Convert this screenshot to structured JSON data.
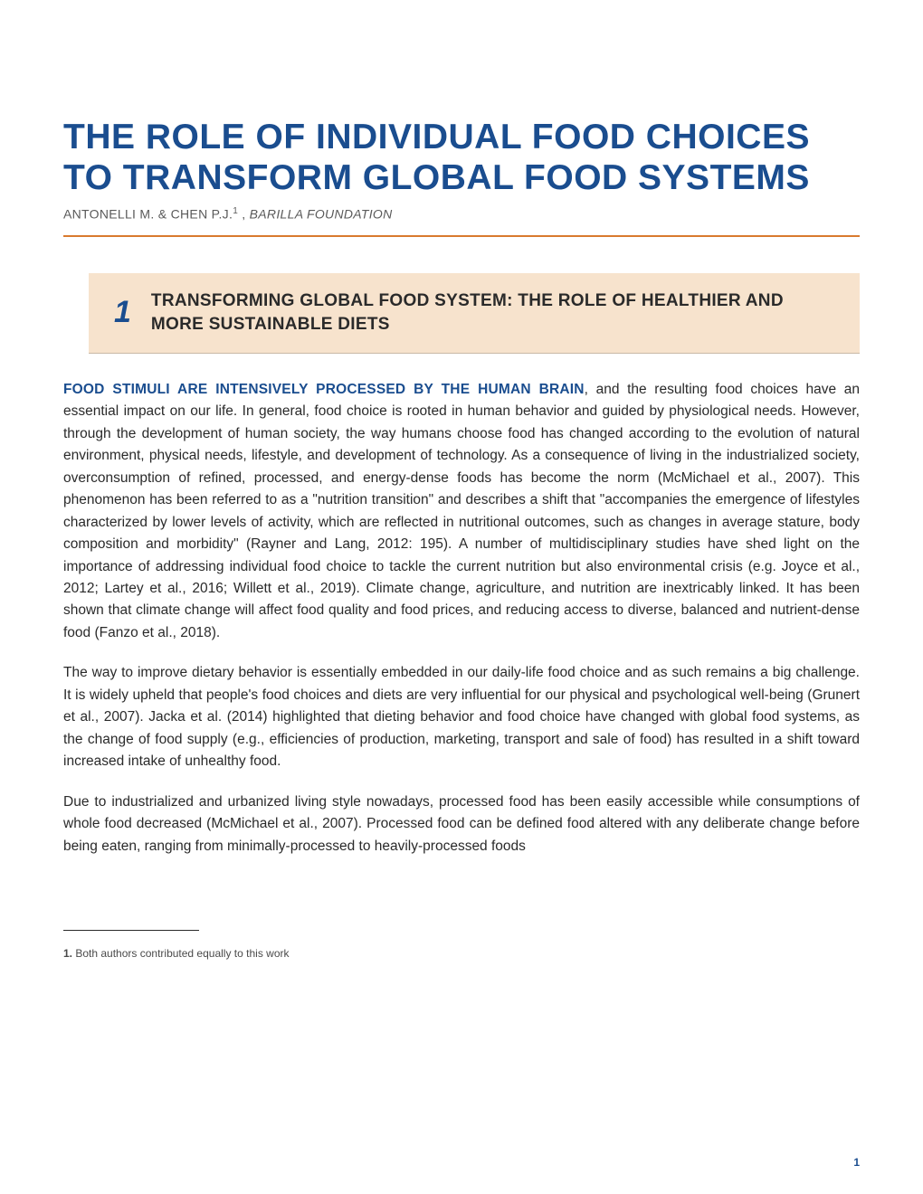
{
  "colors": {
    "title_blue": "#1a4d8f",
    "orange_rule": "#d97a2e",
    "section_bg": "#f7e3cd",
    "section_border": "#c9b9a6",
    "body_text": "#2a2a2a",
    "author_gray": "#5a5a5a",
    "background": "#ffffff"
  },
  "typography": {
    "title_fontsize": 39,
    "section_title_fontsize": 19,
    "section_num_fontsize": 34,
    "body_fontsize": 15.5,
    "author_fontsize": 14,
    "footnote_fontsize": 12
  },
  "title": "THE ROLE OF INDIVIDUAL FOOD CHOICES TO TRANSFORM GLOBAL FOOD SYSTEMS",
  "authors": "ANTONELLI M. & CHEN P.J.",
  "author_sup": "1",
  "author_sep": " , ",
  "organization": "BARILLA FOUNDATION",
  "section": {
    "number": "1",
    "title": "TRANSFORMING GLOBAL FOOD SYSTEM: THE ROLE OF HEALTHIER AND MORE SUSTAINABLE DIETS"
  },
  "para1_lead": "FOOD STIMULI ARE INTENSIVELY PROCESSED BY THE HUMAN BRAIN",
  "para1_rest": ", and the resulting food choices have an essential impact on our life. In general, food choice is rooted in human behavior and guided by physiological needs. However, through the development of human society, the way humans choose food has changed according to the evolution of natural environment, physical needs, lifestyle, and development of technology. As a consequence of living in the industrialized society, overconsumption of refined, processed, and energy-dense foods has become the norm (McMichael et al., 2007). This phenomenon has been referred to as a \"nutrition transition\" and describes a shift that \"accompanies the emergence of lifestyles characterized by lower levels of activity, which are reflected in nutritional outcomes, such as changes in average stature, body composition and morbidity\" (Rayner and Lang, 2012: 195). A number of multidisciplinary studies have shed light on the importance of addressing individual food choice to tackle the current nutrition but also environmental crisis (e.g. Joyce et al., 2012; Lartey et al., 2016; Willett et al., 2019). Climate change, agriculture, and nutrition are inextricably linked. It has been shown that climate change will affect food quality and food prices, and reducing access to diverse, balanced and nutrient-dense food (Fanzo et al., 2018).",
  "para2": "The way to improve dietary behavior is essentially embedded in our daily-life food choice and as such remains a big challenge. It is widely upheld that people's food choices and diets are very influential for our physical and psychological well-being (Grunert et al., 2007). Jacka et al. (2014) highlighted that dieting behavior and food choice have changed with global food systems, as the change of food supply (e.g., efficiencies of production, marketing, transport and sale of food) has resulted in a shift toward increased intake of unhealthy food.",
  "para3": "Due to industrialized and urbanized living style nowadays, processed food has been easily accessible while consumptions of whole food decreased (McMichael et al., 2007). Processed food can be defined food altered with any deliberate change before being eaten, ranging from minimally-processed to heavily-processed foods",
  "footnote": {
    "num": "1.",
    "text": " Both authors contributed equally to this work"
  },
  "page_number": "1"
}
